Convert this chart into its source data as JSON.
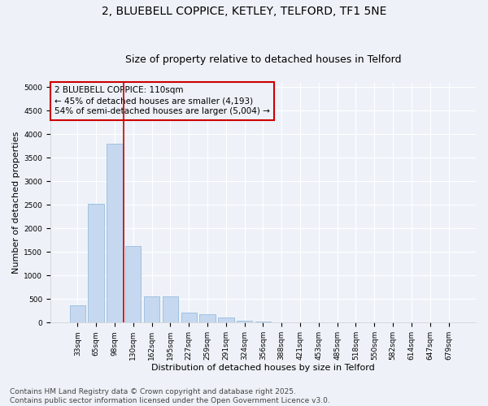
{
  "title_line1": "2, BLUEBELL COPPICE, KETLEY, TELFORD, TF1 5NE",
  "title_line2": "Size of property relative to detached houses in Telford",
  "xlabel": "Distribution of detached houses by size in Telford",
  "ylabel": "Number of detached properties",
  "categories": [
    "33sqm",
    "65sqm",
    "98sqm",
    "130sqm",
    "162sqm",
    "195sqm",
    "227sqm",
    "259sqm",
    "291sqm",
    "324sqm",
    "356sqm",
    "388sqm",
    "421sqm",
    "453sqm",
    "485sqm",
    "518sqm",
    "550sqm",
    "582sqm",
    "614sqm",
    "647sqm",
    "679sqm"
  ],
  "values": [
    370,
    2530,
    3800,
    1620,
    560,
    560,
    210,
    170,
    100,
    40,
    20,
    0,
    0,
    0,
    0,
    0,
    0,
    0,
    0,
    0,
    0
  ],
  "bar_color": "#c5d8f0",
  "bar_edgecolor": "#8ab4d8",
  "vline_color": "#cc0000",
  "annotation_text": "2 BLUEBELL COPPICE: 110sqm\n← 45% of detached houses are smaller (4,193)\n54% of semi-detached houses are larger (5,004) →",
  "annotation_box_edgecolor": "#cc0000",
  "ylim": [
    0,
    5100
  ],
  "yticks": [
    0,
    500,
    1000,
    1500,
    2000,
    2500,
    3000,
    3500,
    4000,
    4500,
    5000
  ],
  "footer_line1": "Contains HM Land Registry data © Crown copyright and database right 2025.",
  "footer_line2": "Contains public sector information licensed under the Open Government Licence v3.0.",
  "background_color": "#eef2f8",
  "plot_background": "#eef2f8",
  "grid_color": "#ffffff",
  "title_fontsize": 10,
  "subtitle_fontsize": 9,
  "axis_label_fontsize": 8,
  "tick_fontsize": 6.5,
  "footer_fontsize": 6.5,
  "annotation_fontsize": 7.5
}
